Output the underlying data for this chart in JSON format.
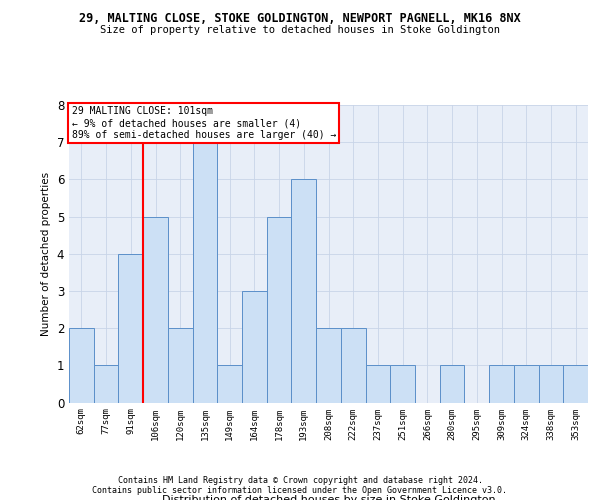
{
  "title_top": "29, MALTING CLOSE, STOKE GOLDINGTON, NEWPORT PAGNELL, MK16 8NX",
  "title_sub": "Size of property relative to detached houses in Stoke Goldington",
  "xlabel": "Distribution of detached houses by size in Stoke Goldington",
  "ylabel": "Number of detached properties",
  "footer1": "Contains HM Land Registry data © Crown copyright and database right 2024.",
  "footer2": "Contains public sector information licensed under the Open Government Licence v3.0.",
  "categories": [
    "62sqm",
    "77sqm",
    "91sqm",
    "106sqm",
    "120sqm",
    "135sqm",
    "149sqm",
    "164sqm",
    "178sqm",
    "193sqm",
    "208sqm",
    "222sqm",
    "237sqm",
    "251sqm",
    "266sqm",
    "280sqm",
    "295sqm",
    "309sqm",
    "324sqm",
    "338sqm",
    "353sqm"
  ],
  "values": [
    2,
    1,
    4,
    5,
    2,
    7,
    1,
    3,
    5,
    6,
    2,
    2,
    1,
    1,
    0,
    1,
    0,
    1,
    1,
    1,
    1
  ],
  "bar_color": "#cce0f5",
  "bar_edge_color": "#5b8fc9",
  "redline_x": 2.5,
  "annotation_lines": [
    "29 MALTING CLOSE: 101sqm",
    "← 9% of detached houses are smaller (4)",
    "89% of semi-detached houses are larger (40) →"
  ],
  "ylim": [
    0,
    8
  ],
  "yticks": [
    0,
    1,
    2,
    3,
    4,
    5,
    6,
    7,
    8
  ],
  "grid_color": "#c8d4e8",
  "background_color": "#e8eef8"
}
